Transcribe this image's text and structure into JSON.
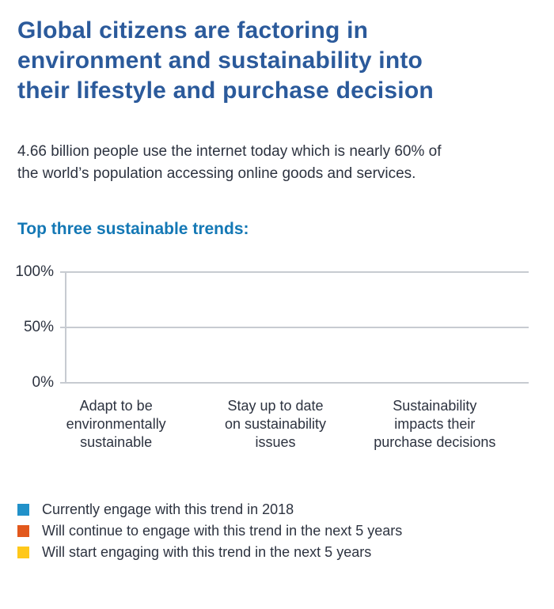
{
  "header": {
    "title": "Global citizens are factoring in environment and sustainability into their lifestyle and purchase decision",
    "title_lines": [
      "Global citizens are factoring in",
      "environment and sustainability into",
      "their lifestyle and purchase decision"
    ]
  },
  "intro": {
    "text": "4.66 billion people use the internet today which is nearly 60% of the world’s population accessing online goods and services.",
    "lines": [
      "4.66 billion people use the internet today which is nearly 60% of",
      "the world’s population accessing online goods and services."
    ]
  },
  "section": {
    "subtitle": "Top three sustainable trends:"
  },
  "theme": {
    "heading-blue": "#2b5a9b",
    "accent-blue": "#1478b5",
    "text-dark": "#2d3340",
    "grid-gray": "#c7cbd1"
  },
  "chart_data": {
    "type": "bar",
    "title": "Top three sustainable trends:",
    "categories": [
      "Adapt to be environmentally sustainable",
      "Stay up to date on sustainability issues",
      "Sustainability impacts their purchase decisions"
    ],
    "categories_lines": [
      [
        "Adapt to be",
        "environmentally",
        "sustainable"
      ],
      [
        "Stay up to date",
        "on sustainability",
        "issues"
      ],
      [
        "Sustainability",
        "impacts their",
        "purchase decisions"
      ]
    ],
    "series": [
      {
        "name": "Currently engage with this trend in 2018",
        "color": "#2191c9",
        "values": [
          null,
          null,
          null
        ]
      },
      {
        "name": "Will continue to engage with this trend in the next 5 years",
        "color": "#e2581c",
        "values": [
          null,
          null,
          null
        ]
      },
      {
        "name": "Will start engaging with this trend in the next 5 years",
        "color": "#ffc81a",
        "values": [
          null,
          null,
          null
        ]
      }
    ],
    "xlabel": "",
    "ylabel": "",
    "ylim": [
      0,
      100
    ],
    "yticks": [
      "0%",
      "50%",
      "100%"
    ],
    "grid": "horizontal lines at 0%, 50%, 100%",
    "legend_position": "bottom-left",
    "note": "Plot area is rendered empty — no bars are drawn for any series"
  }
}
